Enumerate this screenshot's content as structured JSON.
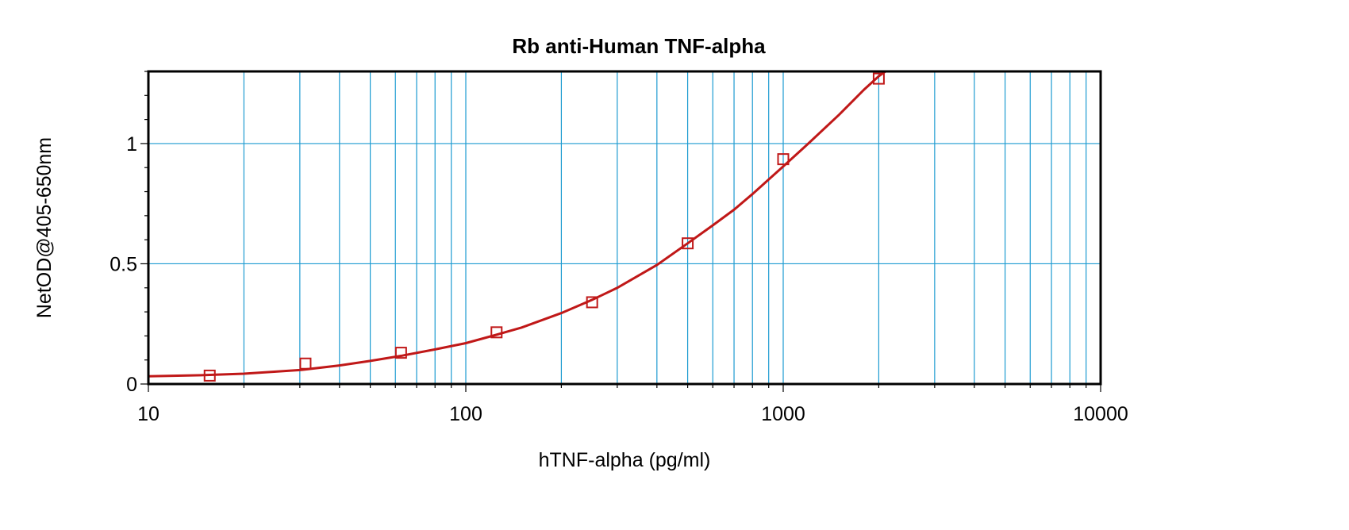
{
  "chart_data": {
    "type": "scatter",
    "title": "Rb anti-Human TNF-alpha",
    "xlabel": "hTNF-alpha (pg/ml)",
    "ylabel": "NetOD@405-650nm",
    "x_scale": "log",
    "xlim": [
      10,
      10000
    ],
    "ylim": [
      0,
      1.3
    ],
    "x_ticks": [
      10,
      100,
      1000,
      10000
    ],
    "x_tick_labels": [
      "10",
      "100",
      "1000",
      "10000"
    ],
    "y_ticks": [
      0,
      0.5,
      1
    ],
    "y_tick_labels": [
      "0",
      "0.5",
      "1"
    ],
    "grid": true,
    "legend": "none",
    "series": [
      {
        "kind": "points",
        "marker": "open-square",
        "x": [
          15.6,
          31.25,
          62.5,
          125,
          250,
          500,
          1000,
          2000
        ],
        "y": [
          0.035,
          0.085,
          0.13,
          0.215,
          0.34,
          0.585,
          0.935,
          1.27
        ]
      },
      {
        "kind": "fitted-curve",
        "x": [
          10,
          15,
          20,
          30,
          40,
          50,
          62.5,
          80,
          100,
          125,
          150,
          200,
          250,
          300,
          400,
          500,
          600,
          700,
          800,
          1000,
          1200,
          1500,
          1800,
          2000,
          2100
        ],
        "y": [
          0.032,
          0.037,
          0.043,
          0.058,
          0.077,
          0.096,
          0.117,
          0.144,
          0.17,
          0.205,
          0.235,
          0.295,
          0.35,
          0.4,
          0.495,
          0.585,
          0.66,
          0.725,
          0.79,
          0.905,
          1.0,
          1.12,
          1.225,
          1.28,
          1.3
        ]
      }
    ],
    "colors": {
      "series": "#c01818",
      "grid": "#1d9bd1",
      "axes": "#000000"
    }
  }
}
